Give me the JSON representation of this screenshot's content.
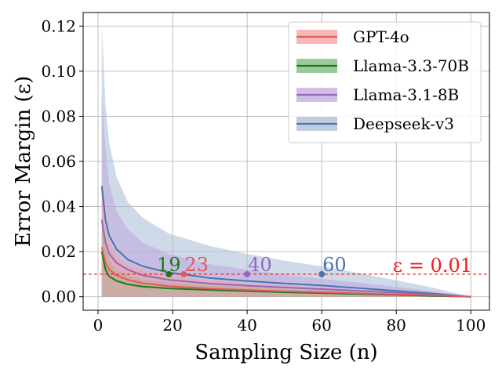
{
  "chart_data": {
    "type": "line",
    "title": "",
    "xlabel": "Sampling Size (n)",
    "ylabel": "Error Margin (ε)",
    "xlim": [
      -4,
      105
    ],
    "ylim": [
      -0.006,
      0.126
    ],
    "xticks": [
      0,
      20,
      40,
      60,
      80,
      100
    ],
    "yticks": [
      0.0,
      0.02,
      0.04,
      0.06,
      0.08,
      0.1,
      0.12
    ],
    "xtick_labels": [
      "0",
      "20",
      "40",
      "60",
      "80",
      "100"
    ],
    "ytick_labels": [
      "0.00",
      "0.02",
      "0.04",
      "0.06",
      "0.08",
      "0.10",
      "0.12"
    ],
    "grid": true,
    "legend_position": "top-right",
    "threshold": {
      "value": 0.01,
      "label": "ε = 0.01",
      "color": "#ee1c1c"
    },
    "series": [
      {
        "name": "GPT-4o",
        "color": "#e05a5a",
        "band_color": "#f2a0a0",
        "x": [
          1,
          2,
          3,
          5,
          8,
          12,
          19,
          23,
          30,
          40,
          50,
          60,
          70,
          80,
          90,
          100
        ],
        "mean": [
          0.022,
          0.015,
          0.012,
          0.0095,
          0.0075,
          0.006,
          0.0047,
          0.0043,
          0.0036,
          0.003,
          0.0024,
          0.002,
          0.0015,
          0.001,
          0.0006,
          0.0
        ],
        "lower": [
          0.0,
          0.0,
          0.0,
          0.0,
          0.0,
          0.0,
          0.0,
          0.0,
          0.0,
          0.0,
          0.0,
          0.0,
          0.0,
          0.0,
          0.0,
          0.0
        ],
        "upper": [
          0.05,
          0.03,
          0.024,
          0.018,
          0.014,
          0.012,
          0.0095,
          0.0085,
          0.0073,
          0.006,
          0.005,
          0.004,
          0.003,
          0.002,
          0.001,
          0.0
        ],
        "marker": {
          "x": 23,
          "y": 0.01,
          "label": "23"
        }
      },
      {
        "name": "Llama-3.3-70B",
        "color": "#1a7a1a",
        "band_color": "#7ab87a",
        "x": [
          1,
          2,
          3,
          5,
          8,
          12,
          19,
          30,
          40,
          50,
          60,
          70,
          80,
          90,
          100
        ],
        "mean": [
          0.02,
          0.012,
          0.009,
          0.007,
          0.0055,
          0.0045,
          0.0037,
          0.003,
          0.0025,
          0.002,
          0.0016,
          0.0012,
          0.0008,
          0.0004,
          0.0
        ],
        "lower": [
          0.0,
          0.0,
          0.0,
          0.0,
          0.0,
          0.0,
          0.0,
          0.0,
          0.0,
          0.0,
          0.0,
          0.0,
          0.0,
          0.0,
          0.0
        ],
        "upper": [
          0.036,
          0.022,
          0.016,
          0.012,
          0.0095,
          0.0078,
          0.0062,
          0.005,
          0.0042,
          0.0034,
          0.0027,
          0.002,
          0.0013,
          0.0007,
          0.0
        ],
        "marker": {
          "x": 19,
          "y": 0.01,
          "label": "19"
        }
      },
      {
        "name": "Llama-3.1-8B",
        "color": "#9467bd",
        "band_color": "#c0a8dc",
        "x": [
          1,
          2,
          3,
          5,
          8,
          12,
          19,
          30,
          40,
          50,
          60,
          70,
          80,
          90,
          100
        ],
        "mean": [
          0.034,
          0.024,
          0.019,
          0.015,
          0.012,
          0.0095,
          0.0075,
          0.0058,
          0.0049,
          0.0041,
          0.0034,
          0.0026,
          0.0018,
          0.001,
          0.0
        ],
        "lower": [
          0.0,
          0.0,
          0.0,
          0.0,
          0.0,
          0.0,
          0.0,
          0.0,
          0.0,
          0.0,
          0.0,
          0.0,
          0.0,
          0.0,
          0.0
        ],
        "upper": [
          0.09,
          0.065,
          0.05,
          0.038,
          0.03,
          0.024,
          0.019,
          0.0145,
          0.012,
          0.0098,
          0.008,
          0.0062,
          0.0044,
          0.0024,
          0.0
        ],
        "marker": {
          "x": 40,
          "y": 0.01,
          "label": "40"
        }
      },
      {
        "name": "Deepseek-v3",
        "color": "#4c72a8",
        "band_color": "#a8bcd6",
        "x": [
          1,
          2,
          3,
          5,
          8,
          12,
          19,
          30,
          40,
          50,
          60,
          70,
          80,
          90,
          100
        ],
        "mean": [
          0.049,
          0.034,
          0.027,
          0.021,
          0.0165,
          0.0135,
          0.0107,
          0.0083,
          0.007,
          0.0059,
          0.005,
          0.0038,
          0.0026,
          0.0014,
          0.0
        ],
        "lower": [
          0.0,
          0.0,
          0.0,
          0.0,
          0.0,
          0.0,
          0.0,
          0.0,
          0.0,
          0.0,
          0.0,
          0.0,
          0.0,
          0.0,
          0.0
        ],
        "upper": [
          0.12,
          0.085,
          0.068,
          0.053,
          0.042,
          0.035,
          0.028,
          0.0225,
          0.019,
          0.016,
          0.0135,
          0.0105,
          0.0073,
          0.004,
          0.0
        ],
        "marker": {
          "x": 60,
          "y": 0.01,
          "label": "60"
        }
      }
    ]
  }
}
